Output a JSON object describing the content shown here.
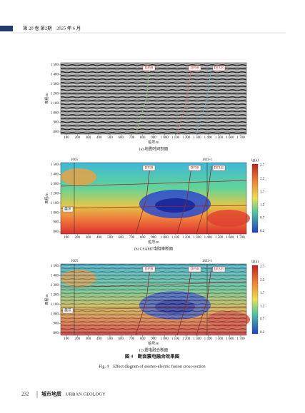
{
  "header": {
    "journal": "第 20 卷 第2期　2025 年 6 月"
  },
  "axes": {
    "y_label": "高程/m",
    "x_label": "桩号/m",
    "y_ticks": [
      "1 500",
      "1 400",
      "1 300",
      "1 200",
      "1 100",
      "1 000",
      "900",
      "800"
    ],
    "x_ticks": [
      "100",
      "200",
      "300",
      "400",
      "500",
      "600",
      "700",
      "800",
      "900",
      "1 000",
      "1 100",
      "1 200",
      "1 300",
      "1 400",
      "1 500",
      "1 600",
      "1 700"
    ]
  },
  "colorbar": {
    "label": "lg(ρ)",
    "ticks": [
      "2.7",
      "2.2",
      "1.7",
      "1.2",
      "0.7",
      "0.2"
    ]
  },
  "panels": [
    {
      "caption": "(a) 地震时间剖面",
      "faults": [
        "DF99",
        "DF98",
        "DF325"
      ]
    },
    {
      "caption": "(b) CSAMT电阻率断面",
      "wells": [
        "1005",
        "1822-1"
      ],
      "faults": [
        "DF99",
        "DF98",
        "DF325"
      ],
      "strata": [
        "奥灰"
      ]
    },
    {
      "caption": "(c) 震电融合断面",
      "wells": [
        "1005",
        "1822-1"
      ],
      "faults": [
        "DF99",
        "DF98",
        "DF325"
      ],
      "strata": [
        "奥灰"
      ]
    }
  ],
  "figure": {
    "title": "图 4　断面震电融合效果图",
    "title_en": "Fig. 4　Effect diagram of seismo-electric fusion cross-section"
  },
  "footer": {
    "page": "232",
    "journal": "城市地质",
    "journal_en": "URBAN GEOLOGY"
  }
}
